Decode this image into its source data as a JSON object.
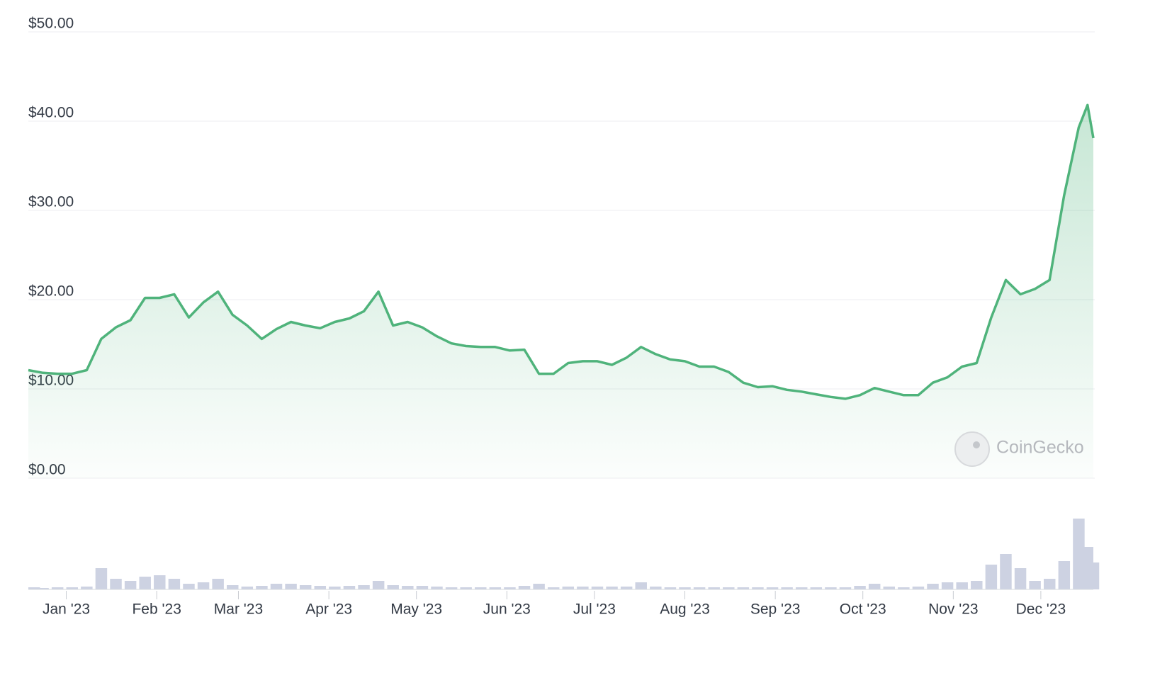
{
  "chart_data": [
    {
      "type": "line",
      "x": [
        -13,
        -8,
        -3,
        2,
        7,
        12,
        17,
        22,
        27,
        32,
        37,
        42,
        47,
        52,
        57,
        62,
        67,
        72,
        77,
        82,
        87,
        92,
        97,
        102,
        107,
        112,
        117,
        122,
        127,
        132,
        137,
        142,
        147,
        152,
        157,
        162,
        167,
        172,
        177,
        182,
        187,
        192,
        197,
        202,
        207,
        212,
        217,
        222,
        227,
        232,
        237,
        242,
        247,
        252,
        257,
        262,
        267,
        272,
        277,
        282,
        287,
        292,
        297,
        302,
        307,
        312,
        317,
        322,
        327,
        332,
        337,
        342,
        347,
        350,
        352
      ],
      "values": [
        12.1,
        11.8,
        11.7,
        11.7,
        12.1,
        15.6,
        16.9,
        17.7,
        20.2,
        20.2,
        20.6,
        18.0,
        19.7,
        20.9,
        18.3,
        17.1,
        15.6,
        16.7,
        17.5,
        17.1,
        16.8,
        17.5,
        17.9,
        18.7,
        20.9,
        17.1,
        17.5,
        16.9,
        15.9,
        15.1,
        14.8,
        14.7,
        14.7,
        14.3,
        14.4,
        11.7,
        11.7,
        12.9,
        13.1,
        13.1,
        12.7,
        13.5,
        14.7,
        13.9,
        13.3,
        13.1,
        12.5,
        12.5,
        11.9,
        10.7,
        10.2,
        10.3,
        9.9,
        9.7,
        9.4,
        9.1,
        8.9,
        9.3,
        10.1,
        9.7,
        9.3,
        9.3,
        10.7,
        11.3,
        12.5,
        12.9,
        18.0,
        22.2,
        20.6,
        21.2,
        22.2,
        31.7,
        39.3,
        41.8,
        38.1
      ],
      "color": "#4fb37b",
      "xlim": [
        -13,
        352
      ],
      "xticks": [
        {
          "value": 0,
          "label": "Jan '23"
        },
        {
          "value": 31,
          "label": "Feb '23"
        },
        {
          "value": 59,
          "label": "Mar '23"
        },
        {
          "value": 90,
          "label": "Apr '23"
        },
        {
          "value": 120,
          "label": "May '23"
        },
        {
          "value": 151,
          "label": "Jun '23"
        },
        {
          "value": 181,
          "label": "Jul '23"
        },
        {
          "value": 212,
          "label": "Aug '23"
        },
        {
          "value": 243,
          "label": "Sep '23"
        },
        {
          "value": 273,
          "label": "Oct '23"
        },
        {
          "value": 304,
          "label": "Nov '23"
        },
        {
          "value": 334,
          "label": "Dec '23"
        }
      ],
      "ylim": [
        0,
        50
      ],
      "yticks": [
        {
          "value": 0,
          "label": "$0.00"
        },
        {
          "value": 10,
          "label": "$10.00"
        },
        {
          "value": 20,
          "label": "$20.00"
        },
        {
          "value": 30,
          "label": "$30.00"
        },
        {
          "value": 40,
          "label": "$40.00"
        },
        {
          "value": 50,
          "label": "$50.00"
        }
      ],
      "grid": true,
      "watermark": "CoinGecko"
    },
    {
      "type": "bar",
      "x": [
        -13,
        -8,
        -3,
        2,
        7,
        12,
        17,
        22,
        27,
        32,
        37,
        42,
        47,
        52,
        57,
        62,
        67,
        72,
        77,
        82,
        87,
        92,
        97,
        102,
        107,
        112,
        117,
        122,
        127,
        132,
        137,
        142,
        147,
        152,
        157,
        162,
        167,
        172,
        177,
        182,
        187,
        192,
        197,
        202,
        207,
        212,
        217,
        222,
        227,
        232,
        237,
        242,
        247,
        252,
        257,
        262,
        267,
        272,
        277,
        282,
        287,
        292,
        297,
        302,
        307,
        312,
        317,
        322,
        327,
        332,
        337,
        342,
        347,
        350,
        352
      ],
      "values": [
        3,
        2,
        3,
        3,
        4,
        30,
        15,
        12,
        18,
        20,
        15,
        8,
        10,
        15,
        6,
        4,
        5,
        8,
        8,
        6,
        5,
        4,
        5,
        6,
        12,
        6,
        5,
        5,
        4,
        3,
        3,
        3,
        3,
        3,
        5,
        8,
        3,
        4,
        4,
        4,
        4,
        4,
        10,
        4,
        3,
        3,
        3,
        3,
        3,
        3,
        3,
        3,
        3,
        3,
        3,
        3,
        3,
        5,
        8,
        4,
        3,
        4,
        8,
        10,
        10,
        12,
        35,
        50,
        30,
        12,
        15,
        40,
        100,
        60,
        38
      ],
      "color": "#cdd2e2",
      "xlim": [
        -13,
        352
      ],
      "ylim": [
        0,
        104
      ]
    }
  ]
}
